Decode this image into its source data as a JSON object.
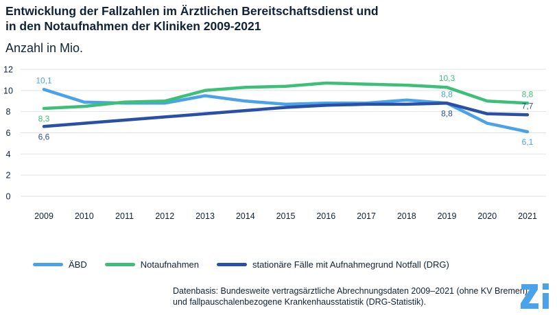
{
  "colors": {
    "abd": "#4aa3e8",
    "notaufnahmen": "#3dbf78",
    "stationaer": "#2a4fa6",
    "grid": "#dfe3e8",
    "text": "#0f2238",
    "logo": "#4aa3e8"
  },
  "header": {
    "title_line1": "Entwicklung der Fallzahlen im Ärztlichen Bereitschaftsdienst und",
    "title_line2": "in den Notaufnahmen der Kliniken 2009-2021",
    "subtitle": "Anzahl in Mio."
  },
  "footer": {
    "source_line1": "Datenbasis: Bundesweite vertragsärztliche Abrechnungsdaten 2009–2021 (ohne KV Bremen)",
    "source_line2": "und fallpauschalenbezogene Krankenhausstatistik (DRG-Statistik).",
    "logo_icon": "zi-logo-icon"
  },
  "chart_data": {
    "type": "line",
    "title": "Entwicklung der Fallzahlen im Ärztlichen Bereitschaftsdienst und in den Notaufnahmen der Kliniken 2009-2021",
    "ylabel": "Anzahl in Mio.",
    "xlabel": "",
    "ylim": [
      0,
      12
    ],
    "yticks": [
      "0",
      "2",
      "4",
      "6",
      "8",
      "10",
      "12"
    ],
    "grid": true,
    "legend_position": "bottom-left",
    "categories": [
      "2009",
      "2010",
      "2011",
      "2012",
      "2013",
      "2014",
      "2015",
      "2016",
      "2017",
      "2018",
      "2019",
      "2020",
      "2021"
    ],
    "series": [
      {
        "key": "abd",
        "name": "ÄBD",
        "values": [
          10.1,
          8.9,
          8.8,
          8.8,
          9.5,
          9.0,
          8.7,
          8.8,
          8.8,
          9.1,
          8.8,
          6.9,
          6.1
        ],
        "labels": [
          {
            "index": 0,
            "text": "10,1",
            "pos": "above"
          },
          {
            "index": 10,
            "text": "8,8",
            "pos": "above"
          },
          {
            "index": 12,
            "text": "6,1",
            "pos": "below"
          }
        ]
      },
      {
        "key": "notaufnahmen",
        "name": "Notaufnahmen",
        "values": [
          8.3,
          8.5,
          8.9,
          9.0,
          10.0,
          10.3,
          10.4,
          10.7,
          10.6,
          10.5,
          10.3,
          9.0,
          8.8
        ],
        "labels": [
          {
            "index": 0,
            "text": "8,3",
            "pos": "below"
          },
          {
            "index": 10,
            "text": "10,3",
            "pos": "above"
          },
          {
            "index": 12,
            "text": "8,8",
            "pos": "above"
          }
        ]
      },
      {
        "key": "stationaer",
        "name": "stationäre Fälle mit Aufnahmegrund Notfall (DRG)",
        "values": [
          6.6,
          6.9,
          7.2,
          7.5,
          7.8,
          8.1,
          8.4,
          8.6,
          8.7,
          8.7,
          8.8,
          7.8,
          7.7
        ],
        "labels": [
          {
            "index": 0,
            "text": "6,6",
            "pos": "below"
          },
          {
            "index": 10,
            "text": "8,8",
            "pos": "below"
          },
          {
            "index": 12,
            "text": "7,7",
            "pos": "above"
          }
        ]
      }
    ]
  }
}
